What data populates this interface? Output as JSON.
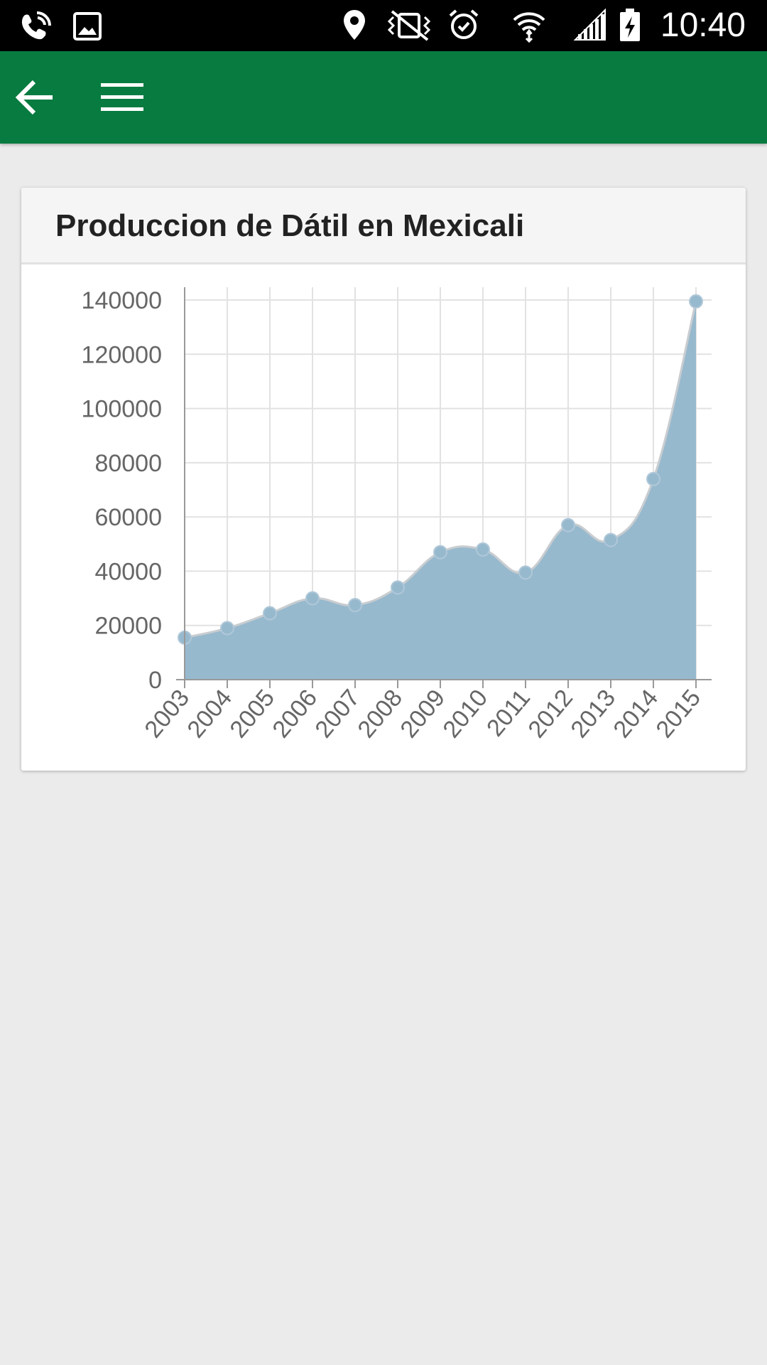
{
  "status_bar": {
    "time": "10:40",
    "left_icons": [
      "wifi-calling-icon",
      "image-icon"
    ],
    "right_icons": [
      "location-icon",
      "vibrate-icon",
      "alarm-icon",
      "wifi-icon",
      "signal-icon",
      "battery-charging-icon"
    ]
  },
  "app_bar": {
    "background": "#077b40",
    "back_icon": "arrow-left-icon",
    "menu_icon": "hamburger-menu-icon"
  },
  "card": {
    "title": "Produccion de Dátil en Mexicali"
  },
  "chart_data": {
    "type": "area",
    "title": "Produccion de Dátil en Mexicali",
    "xlabel": "",
    "ylabel": "",
    "x": [
      "2003",
      "2004",
      "2005",
      "2006",
      "2007",
      "2008",
      "2009",
      "2010",
      "2011",
      "2012",
      "2013",
      "2014",
      "2015"
    ],
    "series": [
      {
        "values": [
          15500,
          19000,
          24500,
          30000,
          27500,
          34000,
          47000,
          48000,
          39500,
          57000,
          51500,
          74000,
          139500
        ],
        "color": "#97b9ce",
        "line_color": "#c9cdd0",
        "point_color": "#97b9ce"
      }
    ],
    "ylim": [
      0,
      140000
    ],
    "yticks": [
      "0",
      "20000",
      "40000",
      "60000",
      "80000",
      "100000",
      "120000",
      "140000"
    ],
    "grid": true,
    "smooth": true
  }
}
